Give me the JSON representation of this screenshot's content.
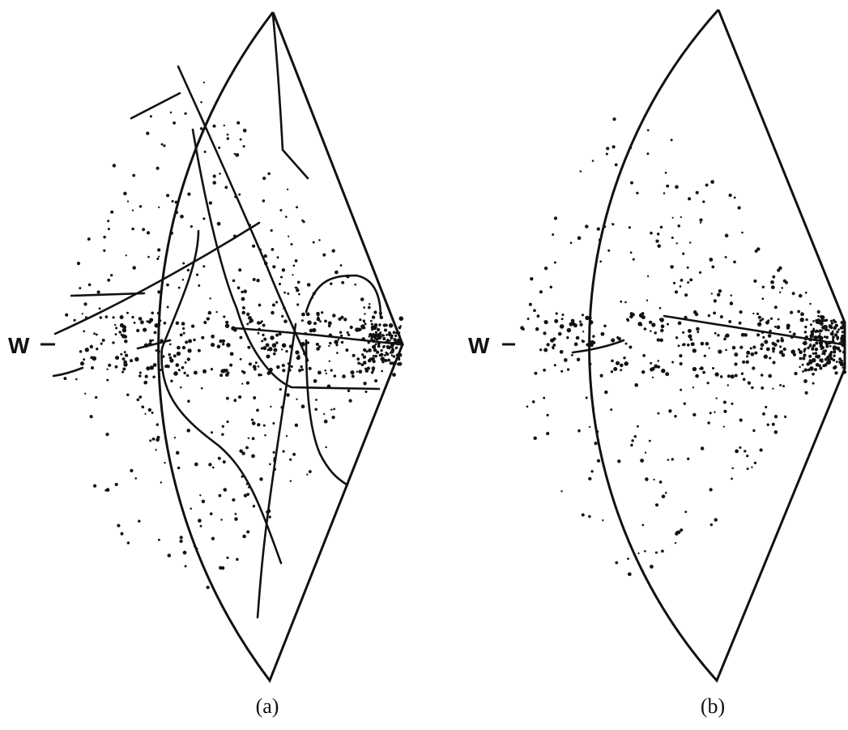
{
  "panels": [
    {
      "id": "a",
      "label": "(a)",
      "w_marker": "W",
      "noise_density": "high",
      "tracks": 10
    },
    {
      "id": "b",
      "label": "(b)",
      "w_marker": "W",
      "noise_density": "medium",
      "tracks": 1
    }
  ],
  "colors": {
    "ink": "#111111",
    "background": "#ffffff"
  }
}
